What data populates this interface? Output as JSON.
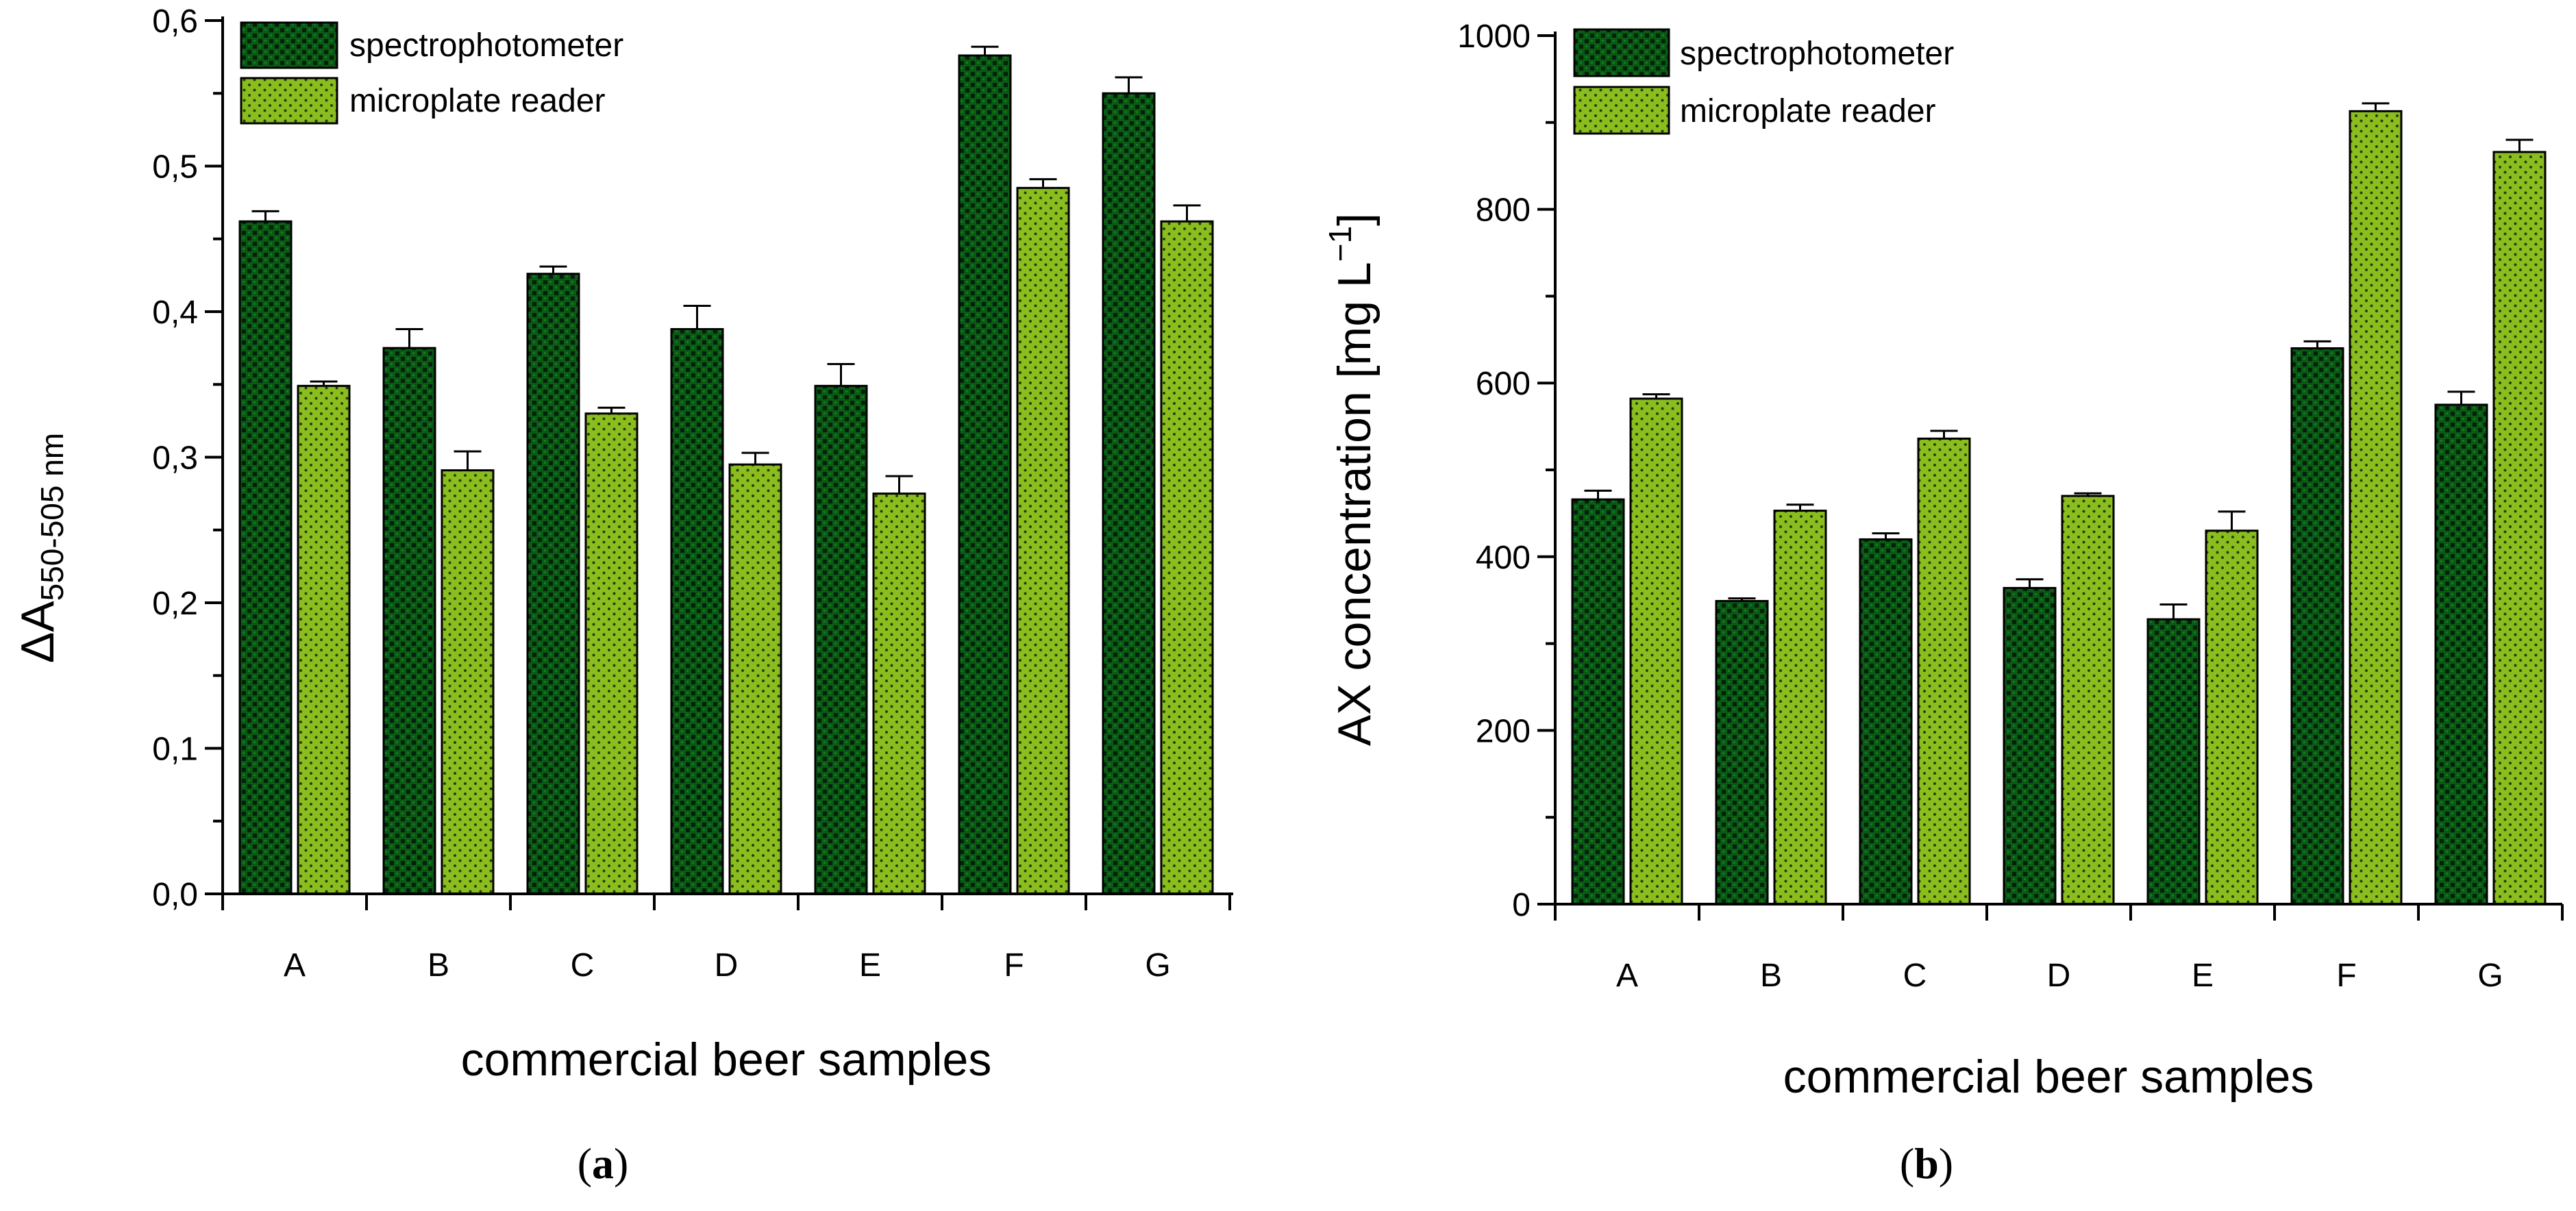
{
  "chart_data": [
    {
      "type": "bar",
      "panel_label": "a",
      "title": "",
      "xlabel": "commercial beer samples",
      "ylabel_main": "ΔA",
      "ylabel_subscript": "550-505 nm",
      "ylim": [
        0,
        0.6
      ],
      "yticks": [
        "0,0",
        "0,1",
        "0,2",
        "0,3",
        "0,4",
        "0,5",
        "0,6"
      ],
      "ytick_values": [
        0,
        0.1,
        0.2,
        0.3,
        0.4,
        0.5,
        0.6
      ],
      "categories": [
        "A",
        "B",
        "C",
        "D",
        "E",
        "F",
        "G"
      ],
      "legend_position": "top-left",
      "series": [
        {
          "name": "spectrophotometer",
          "color": "#0a5a14",
          "pattern": "checker",
          "values": [
            0.462,
            0.375,
            0.426,
            0.388,
            0.349,
            0.576,
            0.55
          ],
          "errors": [
            0.007,
            0.013,
            0.005,
            0.016,
            0.015,
            0.006,
            0.011
          ]
        },
        {
          "name": "microplate reader",
          "color": "#8bbd1e",
          "pattern": "dots",
          "values": [
            0.349,
            0.291,
            0.33,
            0.295,
            0.275,
            0.485,
            0.462
          ],
          "errors": [
            0.003,
            0.013,
            0.004,
            0.008,
            0.012,
            0.006,
            0.011
          ]
        }
      ]
    },
    {
      "type": "bar",
      "panel_label": "b",
      "title": "",
      "xlabel": "commercial beer samples",
      "ylabel_main": "AX concentration [mg L",
      "ylabel_superscript": "−1",
      "ylabel_tail": "]",
      "ylim": [
        0,
        1000
      ],
      "yticks": [
        "0",
        "200",
        "400",
        "600",
        "800",
        "1000"
      ],
      "ytick_values": [
        0,
        200,
        400,
        600,
        800,
        1000
      ],
      "categories": [
        "A",
        "B",
        "C",
        "D",
        "E",
        "F",
        "G"
      ],
      "legend_position": "top-left",
      "series": [
        {
          "name": "spectrophotometer",
          "color": "#0a5a14",
          "pattern": "checker",
          "values": [
            466,
            349,
            420,
            364,
            328,
            640,
            575
          ],
          "errors": [
            10,
            3,
            7,
            10,
            17,
            8,
            15
          ]
        },
        {
          "name": "microplate reader",
          "color": "#8bbd1e",
          "pattern": "dots",
          "values": [
            582,
            453,
            536,
            470,
            430,
            913,
            866
          ],
          "errors": [
            5,
            7,
            9,
            3,
            22,
            9,
            14
          ]
        }
      ]
    }
  ]
}
